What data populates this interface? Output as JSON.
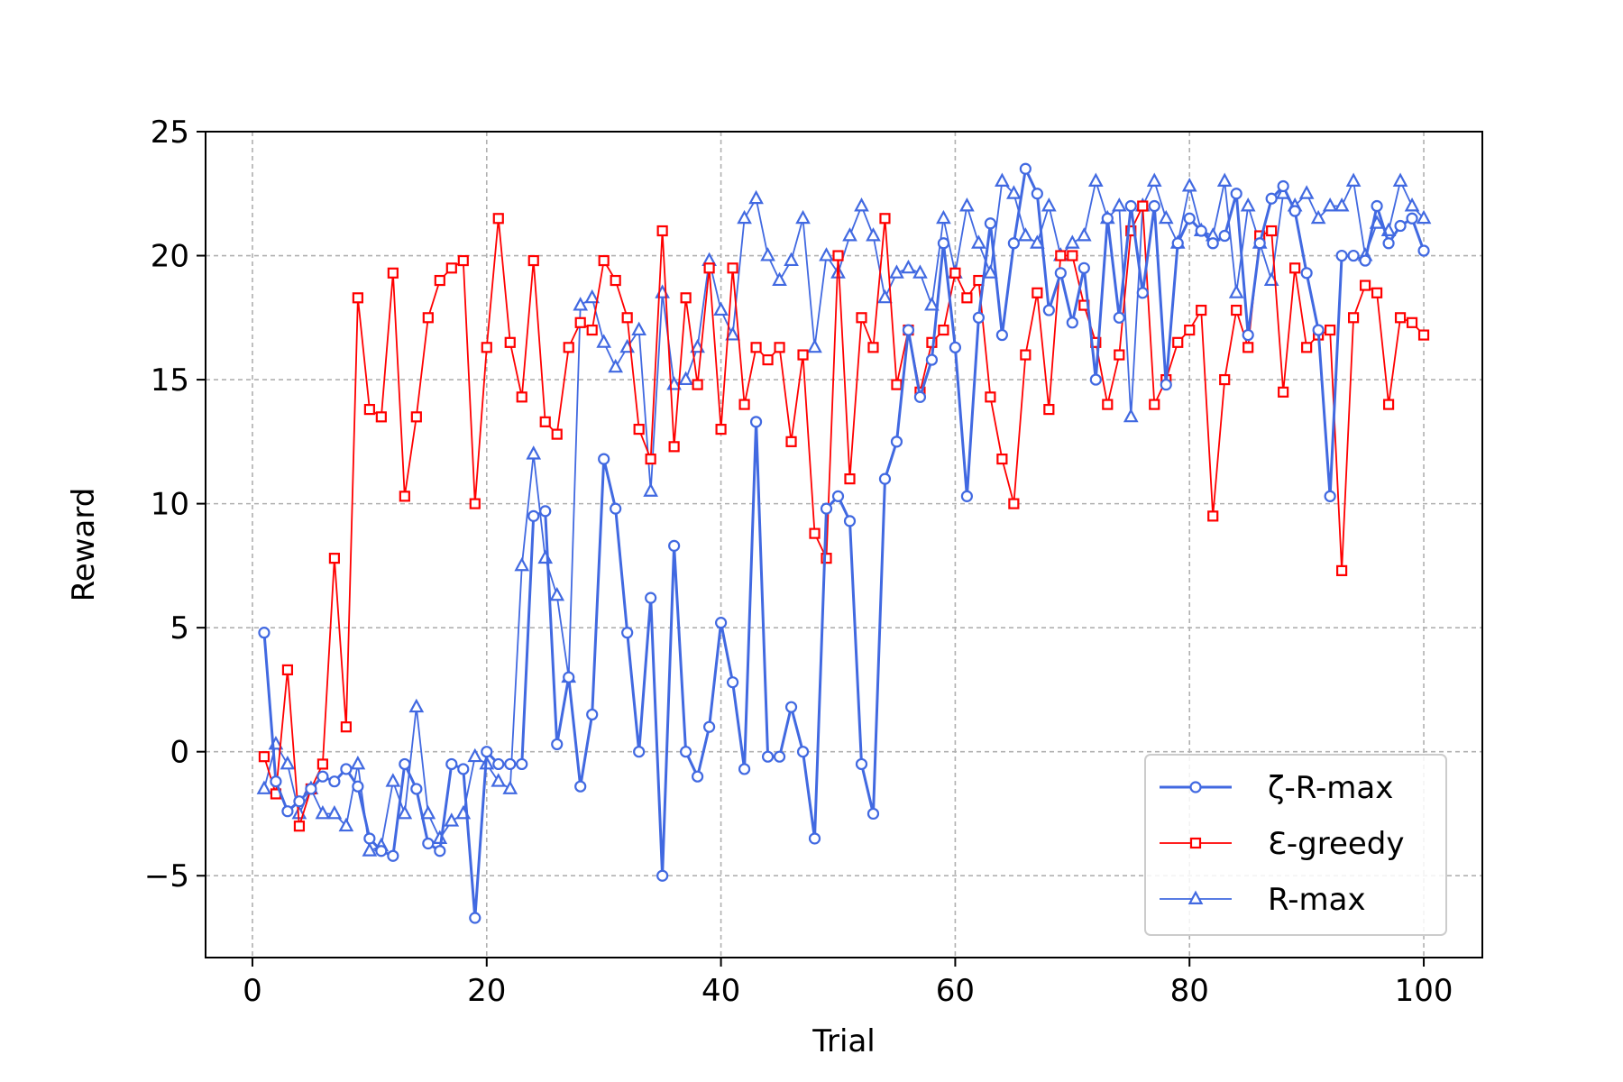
{
  "chart_data": {
    "type": "line",
    "title": "",
    "xlabel": "Trial",
    "ylabel": "Reward",
    "xlim": [
      -4,
      105
    ],
    "ylim": [
      -8.3,
      25
    ],
    "xticks": [
      0,
      20,
      40,
      60,
      80,
      100
    ],
    "yticks": [
      -5,
      0,
      5,
      10,
      15,
      20,
      25
    ],
    "grid": true,
    "legend": "bottom-right",
    "series": [
      {
        "name": "ζ-R-max",
        "color": "#4169e1",
        "marker": "circle",
        "values": [
          4.8,
          -1.2,
          -2.4,
          -2.0,
          -1.5,
          -1.0,
          -1.2,
          -0.7,
          -1.4,
          -3.5,
          -4.0,
          -4.2,
          -0.5,
          -1.5,
          -3.7,
          -4.0,
          -0.5,
          -0.7,
          -6.7,
          0.0,
          -0.5,
          -0.5,
          -0.5,
          9.5,
          9.7,
          0.3,
          3.0,
          -1.4,
          1.5,
          11.8,
          9.8,
          4.8,
          0.0,
          6.2,
          -5.0,
          8.3,
          0.0,
          -1.0,
          1.0,
          5.2,
          2.8,
          -0.7,
          13.3,
          -0.2,
          -0.2,
          1.8,
          0.0,
          -3.5,
          9.8,
          10.3,
          9.3,
          -0.5,
          -2.5,
          11.0,
          12.5,
          17.0,
          14.3,
          15.8,
          20.5,
          16.3,
          10.3,
          17.5,
          21.3,
          16.8,
          20.5,
          23.5,
          22.5,
          17.8,
          19.3,
          17.3,
          19.5,
          15.0,
          21.5,
          17.5,
          22.0,
          18.5,
          22.0,
          14.8,
          20.5,
          21.5,
          21.0,
          20.5,
          20.8,
          22.5,
          16.8,
          20.5,
          22.3,
          22.8,
          21.8,
          19.3,
          17.0,
          10.3,
          20.0,
          20.0,
          19.8,
          22.0,
          20.5,
          21.2,
          21.5,
          20.2
        ]
      },
      {
        "name": "Ɛ-greedy",
        "color": "#ff0000",
        "marker": "square",
        "values": [
          -0.2,
          -1.7,
          3.3,
          -3.0,
          -1.5,
          -0.5,
          7.8,
          1.0,
          18.3,
          13.8,
          13.5,
          19.3,
          10.3,
          13.5,
          17.5,
          19.0,
          19.5,
          19.8,
          10.0,
          16.3,
          21.5,
          16.5,
          14.3,
          19.8,
          13.3,
          12.8,
          16.3,
          17.3,
          17.0,
          19.8,
          19.0,
          17.5,
          13.0,
          11.8,
          21.0,
          12.3,
          18.3,
          14.8,
          19.5,
          13.0,
          19.5,
          14.0,
          16.3,
          15.8,
          16.3,
          12.5,
          16.0,
          8.8,
          7.8,
          20.0,
          11.0,
          17.5,
          16.3,
          21.5,
          14.8,
          17.0,
          14.5,
          16.5,
          17.0,
          19.3,
          18.3,
          19.0,
          14.3,
          11.8,
          10.0,
          16.0,
          18.5,
          13.8,
          20.0,
          20.0,
          18.0,
          16.5,
          14.0,
          16.0,
          21.0,
          22.0,
          14.0,
          15.0,
          16.5,
          17.0,
          17.8,
          9.5,
          15.0,
          17.8,
          16.3,
          20.8,
          21.0,
          14.5,
          19.5,
          16.3,
          16.8,
          17.0,
          7.3,
          17.5,
          18.8,
          18.5,
          14.0,
          17.5,
          17.3,
          16.8
        ]
      },
      {
        "name": "R-max",
        "color": "#4169e1",
        "marker": "triangle",
        "values": [
          -1.5,
          0.3,
          -0.5,
          -2.5,
          -1.5,
          -2.5,
          -2.5,
          -3.0,
          -0.5,
          -4.0,
          -3.8,
          -1.2,
          -2.5,
          1.8,
          -2.5,
          -3.5,
          -2.8,
          -2.5,
          -0.2,
          -0.5,
          -1.2,
          -1.5,
          7.5,
          12.0,
          7.8,
          6.3,
          3.0,
          18.0,
          18.3,
          16.5,
          15.5,
          16.3,
          17.0,
          10.5,
          18.5,
          14.8,
          15.0,
          16.3,
          19.8,
          17.8,
          16.8,
          21.5,
          22.3,
          20.0,
          19.0,
          19.8,
          21.5,
          16.3,
          20.0,
          19.3,
          20.8,
          22.0,
          20.8,
          18.3,
          19.3,
          19.5,
          19.3,
          18.0,
          21.5,
          19.3,
          22.0,
          20.5,
          19.3,
          23.0,
          22.5,
          20.8,
          20.5,
          22.0,
          20.0,
          20.5,
          20.8,
          23.0,
          21.5,
          22.0,
          13.5,
          22.0,
          23.0,
          21.5,
          20.5,
          22.8,
          21.0,
          20.8,
          23.0,
          18.5,
          22.0,
          20.5,
          19.0,
          22.5,
          22.0,
          22.5,
          21.5,
          22.0,
          22.0,
          23.0,
          20.0,
          21.3,
          21.0,
          23.0,
          22.0,
          21.5
        ]
      }
    ]
  }
}
